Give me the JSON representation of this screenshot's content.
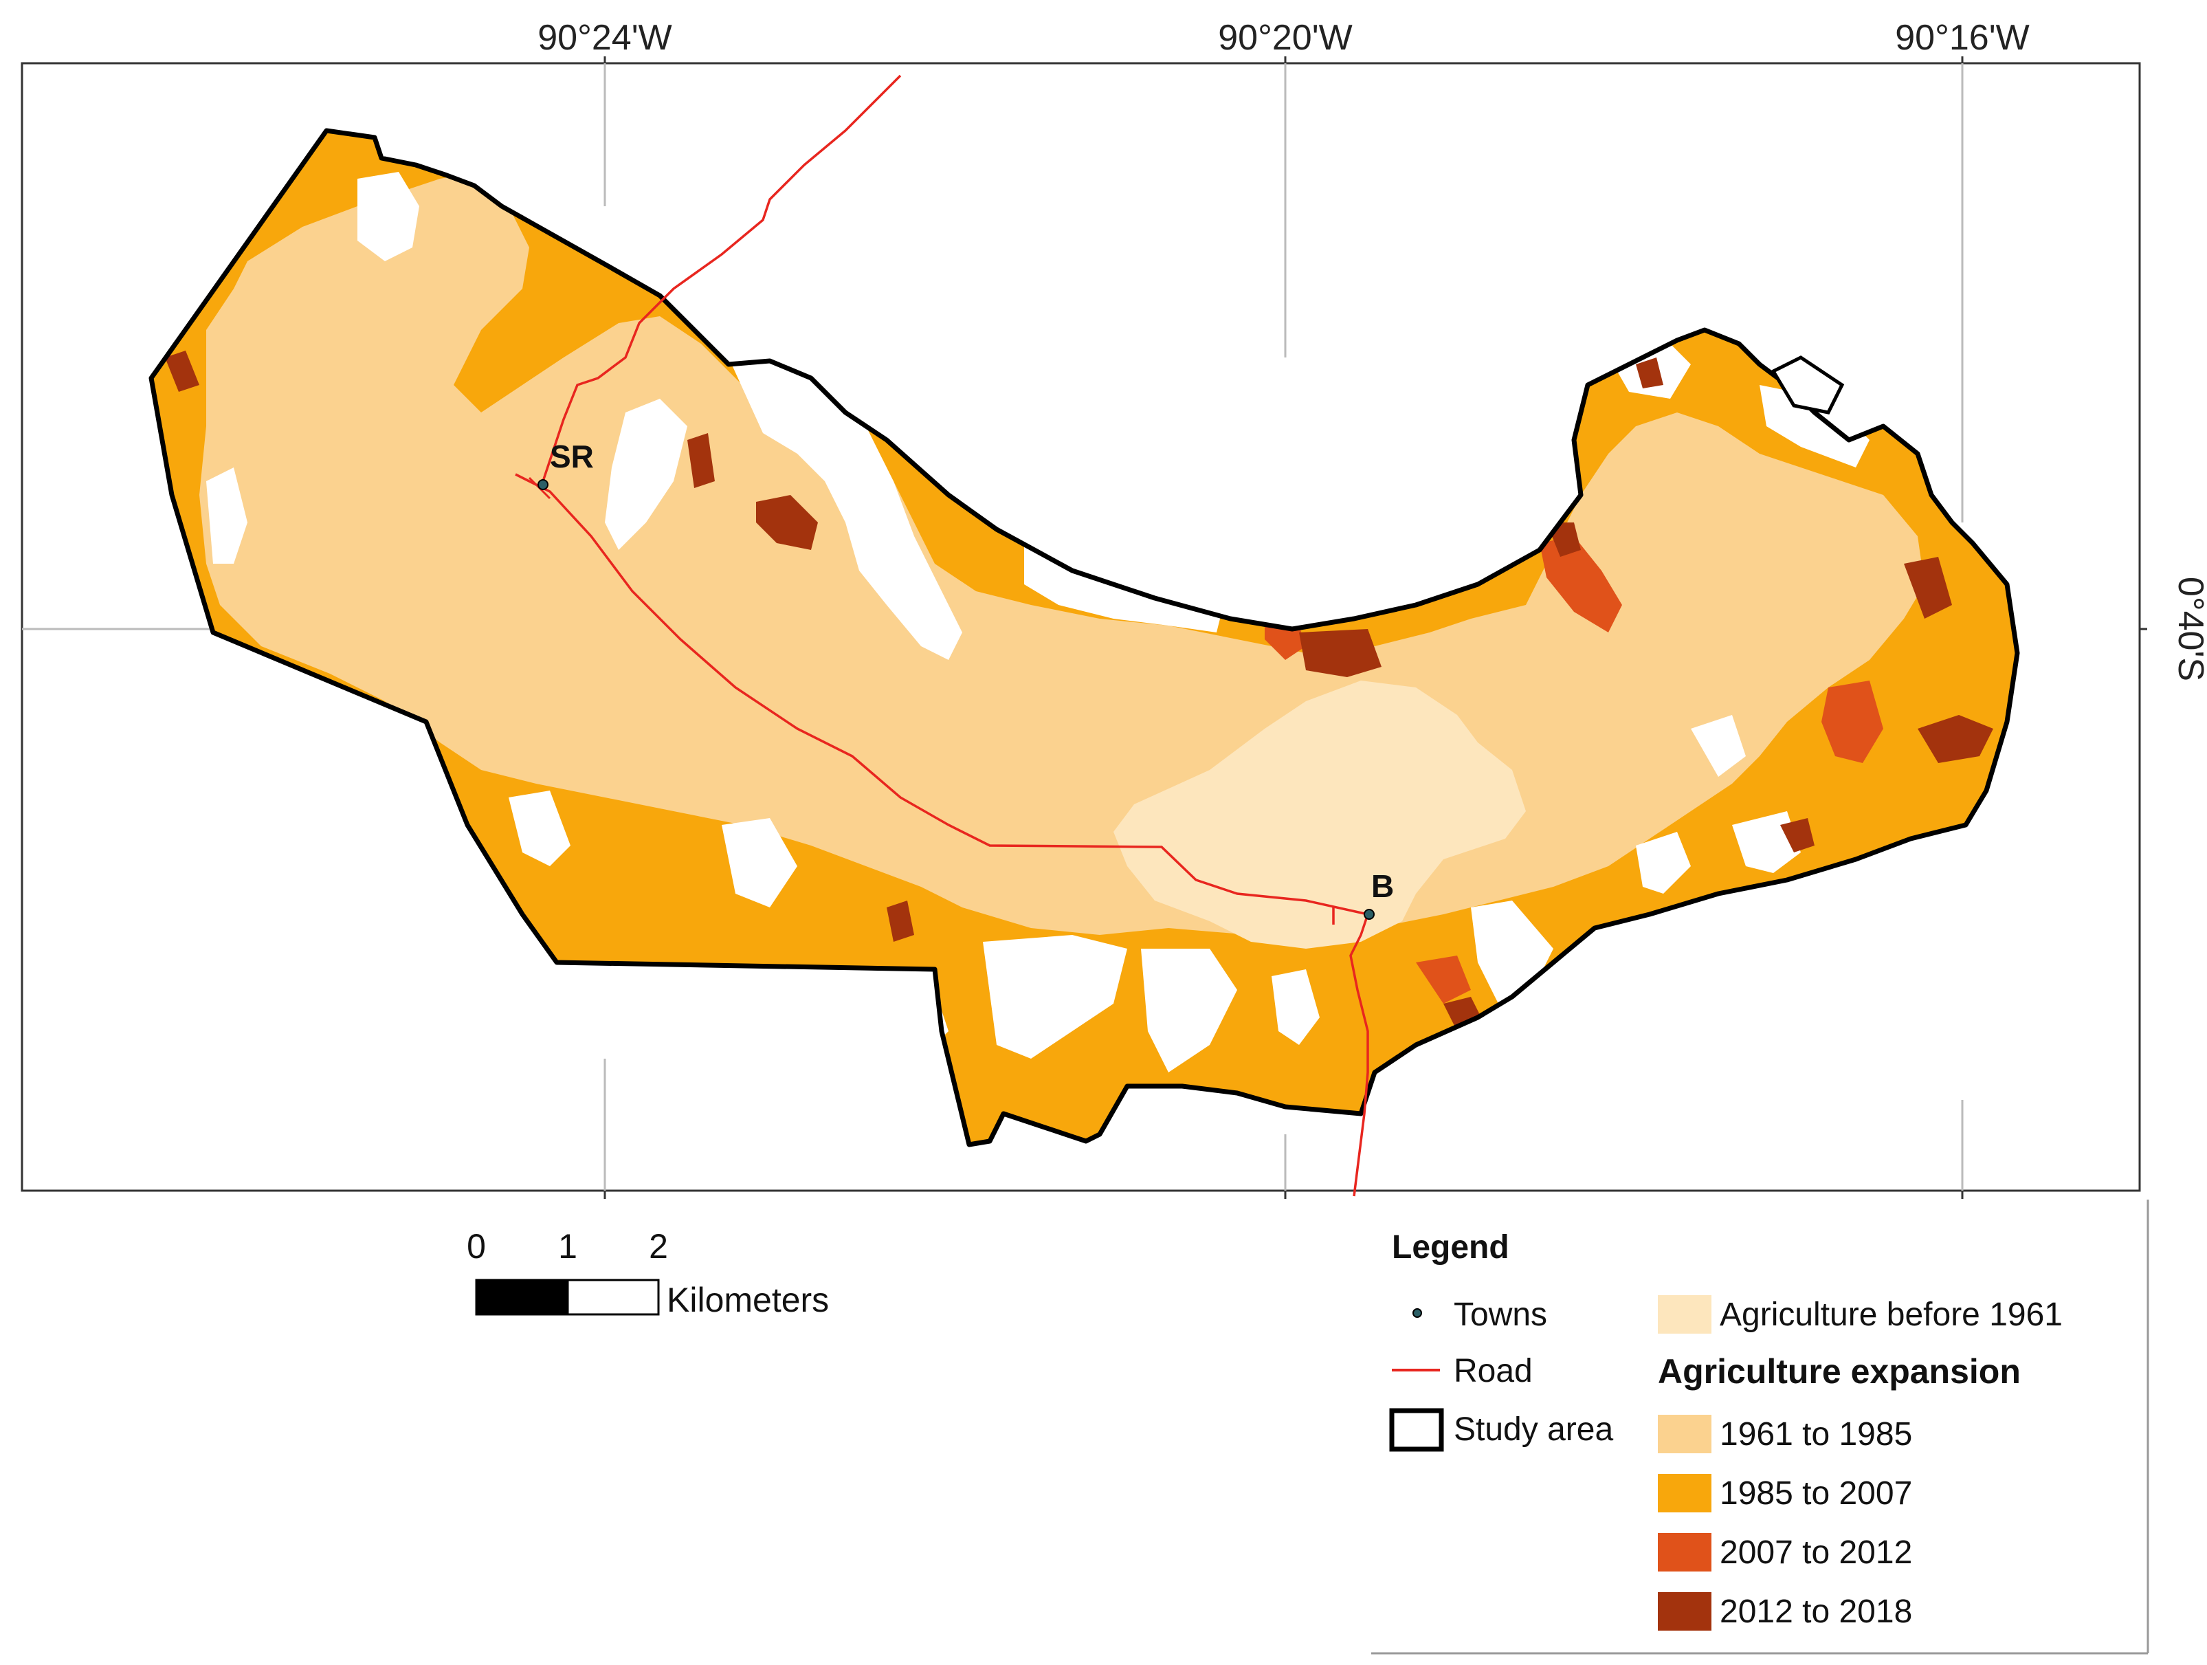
{
  "map": {
    "longitude_labels": [
      "90°24'W",
      "90°20'W",
      "90°16'W"
    ],
    "latitude_label": "0°40'S",
    "towns": [
      {
        "code": "SR"
      },
      {
        "code": "B"
      }
    ]
  },
  "scale_bar": {
    "ticks": [
      "0",
      "1",
      "2"
    ],
    "unit": "Kilometers"
  },
  "legend": {
    "title": "Legend",
    "items": {
      "towns": {
        "label": "Towns"
      },
      "road": {
        "label": "Road",
        "color": "#e8261f"
      },
      "study_area": {
        "label": "Study area",
        "color": "#000000"
      },
      "before_1961": {
        "label": "Agriculture before 1961",
        "color": "#fde6bd"
      }
    },
    "expansion_title": "Agriculture expansion",
    "expansion": [
      {
        "label": "1961 to 1985",
        "color": "#fbd28f"
      },
      {
        "label": "1985 to 2007",
        "color": "#f8a70c"
      },
      {
        "label": "2007 to 2012",
        "color": "#e0521a"
      },
      {
        "label": "2012 to 2018",
        "color": "#a3330d"
      }
    ]
  }
}
